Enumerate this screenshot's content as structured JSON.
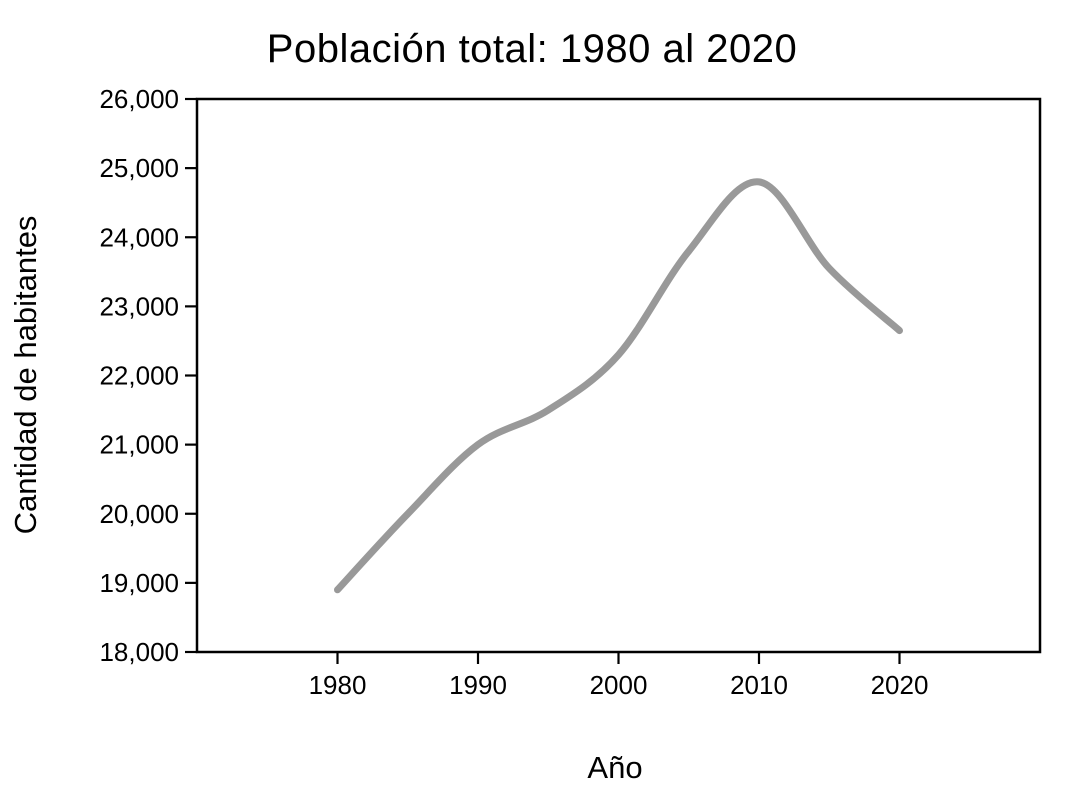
{
  "figure": {
    "background_color": "#ffffff"
  },
  "chart_data": {
    "type": "line",
    "title": "Población total: 1980 al 2020",
    "xlabel": "Año",
    "ylabel": "Cantidad de habitantes",
    "x": [
      1980,
      1985,
      1990,
      1995,
      2000,
      2005,
      2010,
      2015,
      2020
    ],
    "values": [
      18900,
      20000,
      21000,
      21500,
      22300,
      23800,
      24800,
      23550,
      22650
    ],
    "series_name": "Cantidad de habitantes",
    "xlim": [
      1970,
      2030
    ],
    "ylim": [
      18000,
      26000
    ],
    "x_ticks": [
      1980,
      1990,
      2000,
      2010,
      2020
    ],
    "x_tick_labels": [
      "1980",
      "1990",
      "2000",
      "2010",
      "2020"
    ],
    "y_ticks": [
      18000,
      19000,
      20000,
      21000,
      22000,
      23000,
      24000,
      25000,
      26000
    ],
    "y_tick_labels": [
      "18,000",
      "19,000",
      "20,000",
      "21,000",
      "22,000",
      "23,000",
      "24,000",
      "25,000",
      "26,000"
    ],
    "grid": false,
    "legend": null,
    "smooth": true,
    "colors": {
      "line": "#999999",
      "axis": "#000000",
      "background": "#ffffff",
      "text": "#000000"
    },
    "line_width": 7
  }
}
